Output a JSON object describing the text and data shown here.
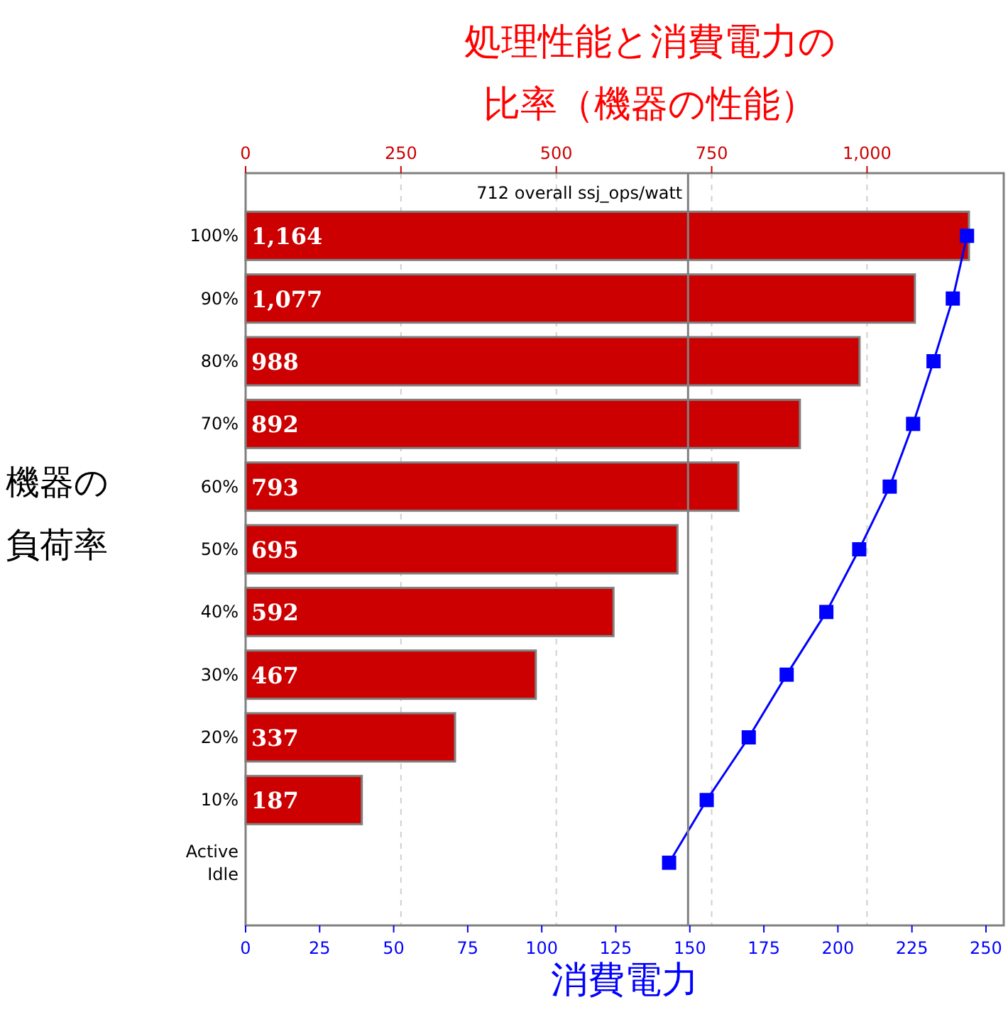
{
  "chart_data": {
    "type": "bar",
    "orientation": "horizontal",
    "x2label": "処理性能と消費電力の比率（機器の性能）",
    "xlabel": "消費電力",
    "ylabel": "機器の負荷率",
    "categories": [
      "100%",
      "90%",
      "80%",
      "70%",
      "60%",
      "50%",
      "40%",
      "30%",
      "20%",
      "10%",
      "Active Idle"
    ],
    "xlim": [
      0,
      256
    ],
    "xticks": [
      0,
      25,
      50,
      75,
      100,
      125,
      150,
      175,
      200,
      225,
      250
    ],
    "x2lim": [
      0,
      1220
    ],
    "x2ticks": [
      0,
      250,
      500,
      750,
      {
        "value": 1000,
        "label": "1,000"
      }
    ],
    "grid": "x2",
    "ref_lines": [
      {
        "axis": "x2",
        "value": 712,
        "label": "712 overall ssj_ops/watt",
        "color": "#808080"
      }
    ],
    "series": [
      {
        "axis": "x2",
        "color": "#cc0000",
        "values": [
          1164,
          1077,
          988,
          892,
          793,
          695,
          592,
          467,
          337,
          187,
          null
        ],
        "value_labels": [
          "1,164",
          "1,077",
          "988",
          "892",
          "793",
          "695",
          "592",
          "467",
          "337",
          "187",
          null
        ]
      },
      {
        "type": "line",
        "color": "#0000ff",
        "marker": "square",
        "line_style": "solid",
        "values": [
          243.6,
          238.8,
          232.3,
          225.4,
          217.5,
          207.2,
          196.1,
          182.7,
          169.9,
          155.7,
          143
        ]
      }
    ]
  }
}
